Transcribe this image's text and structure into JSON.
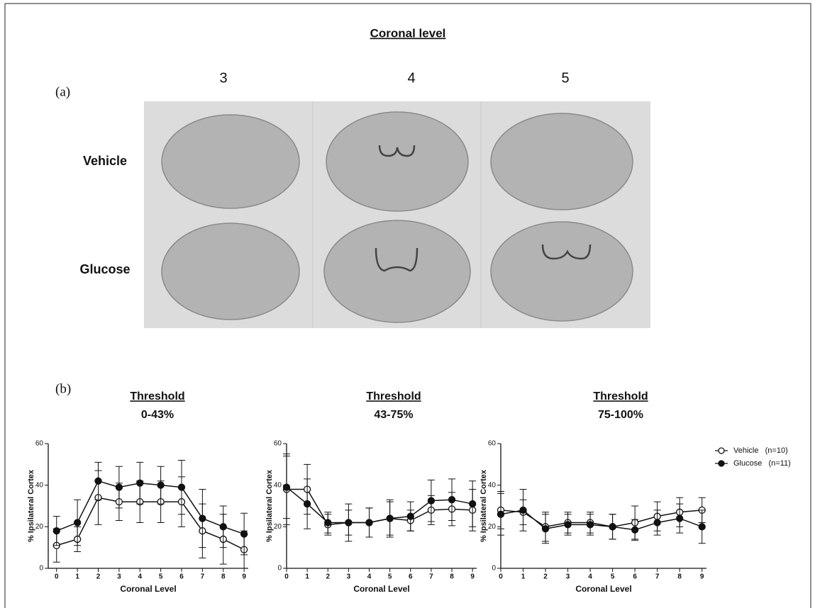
{
  "figure": {
    "heading": "Coronal level",
    "panel_a_label": "(a)",
    "columns": [
      "3",
      "4",
      "5"
    ],
    "rows": [
      "Vehicle",
      "Glucose"
    ],
    "panel_b_label": "(b)"
  },
  "chart_data": [
    {
      "type": "line",
      "title": "Threshold",
      "subtitle": "0-43%",
      "xlabel": "Coronal Level",
      "ylabel": "% Ipsilateral Cortex",
      "x": [
        0,
        1,
        2,
        3,
        4,
        5,
        6,
        7,
        8,
        9
      ],
      "xlim": [
        -0.4,
        9.2
      ],
      "xticks": [
        0,
        1,
        2,
        3,
        4,
        5,
        6,
        7,
        8,
        9
      ],
      "ylim": [
        0,
        60
      ],
      "yticks": [
        0,
        20,
        40,
        60
      ],
      "series": [
        {
          "color": "#111111",
          "marker": "open",
          "values": [
            11,
            14,
            34,
            32,
            32,
            32,
            32,
            18,
            14,
            9
          ],
          "errors": [
            8,
            6,
            13,
            9,
            10,
            10,
            12,
            13,
            12,
            9
          ]
        },
        {
          "color": "#111111",
          "marker": "filled",
          "values": [
            18,
            22,
            42,
            39,
            41,
            40,
            39,
            24,
            20,
            16.5
          ],
          "errors": [
            7,
            11,
            9,
            10,
            10,
            9,
            13,
            14,
            10,
            10
          ]
        }
      ]
    },
    {
      "type": "line",
      "title": "Threshold",
      "subtitle": "43-75%",
      "xlabel": "Coronal Level",
      "ylabel": "% Ipsilateral Cortex",
      "x": [
        0,
        1,
        2,
        3,
        4,
        5,
        6,
        7,
        8,
        9
      ],
      "xlim": [
        0,
        9.2
      ],
      "xticks": [
        0,
        1,
        2,
        3,
        4,
        5,
        6,
        7,
        8,
        9
      ],
      "ylim": [
        0,
        60
      ],
      "yticks": [
        0,
        20,
        40,
        60
      ],
      "series": [
        {
          "color": "#111111",
          "marker": "open",
          "values": [
            38,
            38,
            21,
            22,
            22,
            24,
            23,
            28,
            28.5,
            28
          ],
          "errors": [
            17,
            12,
            5,
            6,
            7,
            8,
            5,
            7,
            8,
            10
          ]
        },
        {
          "color": "#111111",
          "marker": "filled",
          "values": [
            39,
            31,
            22,
            22,
            22,
            24,
            25,
            32.5,
            33,
            31
          ],
          "errors": [
            15,
            12,
            5,
            9,
            7,
            9,
            7,
            10,
            10,
            11
          ]
        }
      ]
    },
    {
      "type": "line",
      "title": "Threshold",
      "subtitle": "75-100%",
      "xlabel": "Coronal Level",
      "ylabel": "% Ipsilateral Cortex",
      "x": [
        0,
        1,
        2,
        3,
        4,
        5,
        6,
        7,
        8,
        9
      ],
      "xlim": [
        0,
        9.2
      ],
      "xticks": [
        0,
        1,
        2,
        3,
        4,
        5,
        6,
        7,
        8,
        9
      ],
      "ylim": [
        0,
        60
      ],
      "yticks": [
        0,
        20,
        40,
        60
      ],
      "legend": "outside-right",
      "series": [
        {
          "name": "Vehicle   (n=10)",
          "color": "#111111",
          "marker": "open",
          "values": [
            28,
            27,
            20,
            22,
            22,
            20,
            22,
            25,
            27,
            28
          ],
          "errors": [
            9,
            6,
            7,
            5,
            5,
            6,
            8,
            7,
            7,
            6
          ]
        },
        {
          "name": "Glucose   (n=11)",
          "color": "#111111",
          "marker": "filled",
          "values": [
            26,
            28,
            19,
            21,
            21,
            20,
            18.5,
            22,
            24,
            20
          ],
          "errors": [
            10,
            10,
            7,
            5,
            5,
            6,
            5,
            6,
            7,
            8
          ]
        }
      ]
    }
  ]
}
